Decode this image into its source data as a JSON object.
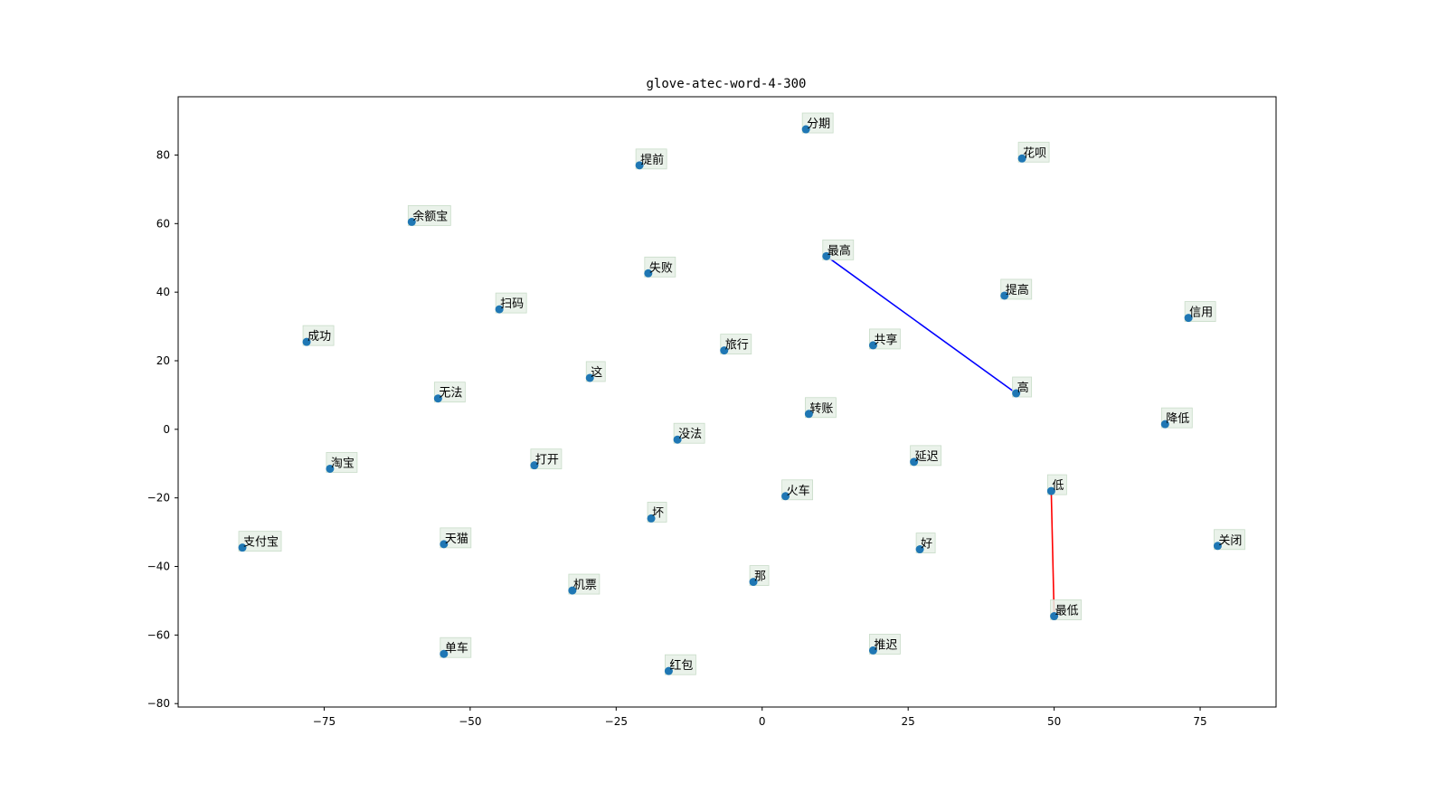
{
  "chart_data": {
    "type": "scatter",
    "title": "glove-atec-word-4-300",
    "xlabel": "",
    "ylabel": "",
    "xlim": [
      -100,
      88
    ],
    "ylim": [
      -81,
      97
    ],
    "xticks": [
      -75,
      -50,
      -25,
      0,
      25,
      50,
      75
    ],
    "yticks": [
      80,
      60,
      40,
      20,
      0,
      -20,
      -40,
      -60,
      -80
    ],
    "xtick_labels": [
      "−75",
      "−50",
      "−25",
      "0",
      "25",
      "50",
      "75"
    ],
    "ytick_labels": [
      "80",
      "60",
      "40",
      "20",
      "0",
      "−20",
      "−40",
      "−60",
      "−80"
    ],
    "grid": false,
    "point_color": "#1f77b4",
    "label_box_color": "#e6f0e6",
    "points": [
      {
        "label": "分期",
        "x": 7.5,
        "y": 87.5
      },
      {
        "label": "提前",
        "x": -21,
        "y": 77
      },
      {
        "label": "花呗",
        "x": 44.5,
        "y": 79
      },
      {
        "label": "余额宝",
        "x": -60,
        "y": 60.5
      },
      {
        "label": "最高",
        "x": 11,
        "y": 50.5
      },
      {
        "label": "失败",
        "x": -19.5,
        "y": 45.5
      },
      {
        "label": "提高",
        "x": 41.5,
        "y": 39
      },
      {
        "label": "扫码",
        "x": -45,
        "y": 35
      },
      {
        "label": "信用",
        "x": 73,
        "y": 32.5
      },
      {
        "label": "成功",
        "x": -78,
        "y": 25.5
      },
      {
        "label": "旅行",
        "x": -6.5,
        "y": 23
      },
      {
        "label": "共享",
        "x": 19,
        "y": 24.5
      },
      {
        "label": "这",
        "x": -29.5,
        "y": 15
      },
      {
        "label": "高",
        "x": 43.5,
        "y": 10.5
      },
      {
        "label": "无法",
        "x": -55.5,
        "y": 9
      },
      {
        "label": "转账",
        "x": 8,
        "y": 4.5
      },
      {
        "label": "降低",
        "x": 69,
        "y": 1.5
      },
      {
        "label": "没法",
        "x": -14.5,
        "y": -3
      },
      {
        "label": "延迟",
        "x": 26,
        "y": -9.5
      },
      {
        "label": "淘宝",
        "x": -74,
        "y": -11.5
      },
      {
        "label": "打开",
        "x": -39,
        "y": -10.5
      },
      {
        "label": "低",
        "x": 49.5,
        "y": -18
      },
      {
        "label": "火车",
        "x": 4,
        "y": -19.5
      },
      {
        "label": "坏",
        "x": -19,
        "y": -26
      },
      {
        "label": "支付宝",
        "x": -89,
        "y": -34.5
      },
      {
        "label": "天猫",
        "x": -54.5,
        "y": -33.5
      },
      {
        "label": "好",
        "x": 27,
        "y": -35
      },
      {
        "label": "关闭",
        "x": 78,
        "y": -34
      },
      {
        "label": "机票",
        "x": -32.5,
        "y": -47
      },
      {
        "label": "那",
        "x": -1.5,
        "y": -44.5
      },
      {
        "label": "最低",
        "x": 50,
        "y": -54.5
      },
      {
        "label": "推迟",
        "x": 19,
        "y": -64.5
      },
      {
        "label": "单车",
        "x": -54.5,
        "y": -65.5
      },
      {
        "label": "红包",
        "x": -16,
        "y": -70.5
      }
    ],
    "lines": [
      {
        "from": "最高",
        "to": "高",
        "color": "#0000ff"
      },
      {
        "from": "低",
        "to": "最低",
        "color": "#ff0000"
      }
    ]
  }
}
